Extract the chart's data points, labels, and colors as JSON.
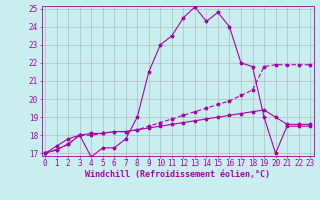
{
  "xlabel": "Windchill (Refroidissement éolien,°C)",
  "background_color": "#c8eef0",
  "grid_color": "#b0b0b0",
  "line_color": "#aa00aa",
  "xmin": 0,
  "xmax": 23,
  "ymin": 17,
  "ymax": 25,
  "yticks": [
    17,
    18,
    19,
    20,
    21,
    22,
    23,
    24,
    25
  ],
  "xticks": [
    0,
    1,
    2,
    3,
    4,
    5,
    6,
    7,
    8,
    9,
    10,
    11,
    12,
    13,
    14,
    15,
    16,
    17,
    18,
    19,
    20,
    21,
    22,
    23
  ],
  "line1_x": [
    0,
    1,
    2,
    3,
    4,
    5,
    6,
    7,
    8,
    9,
    10,
    11,
    12,
    13,
    14,
    15,
    16,
    17,
    18,
    19,
    20,
    21,
    22,
    23
  ],
  "line1_y": [
    17.0,
    17.4,
    17.8,
    18.0,
    16.8,
    17.3,
    17.3,
    17.8,
    19.0,
    21.5,
    23.0,
    23.5,
    24.5,
    25.1,
    24.3,
    24.8,
    24.0,
    22.0,
    21.8,
    19.0,
    17.0,
    18.5,
    18.5,
    18.5
  ],
  "line2_x": [
    0,
    1,
    2,
    3,
    4,
    5,
    6,
    7,
    8,
    9,
    10,
    11,
    12,
    13,
    14,
    15,
    16,
    17,
    18,
    19,
    20,
    21,
    22,
    23
  ],
  "line2_y": [
    17.0,
    17.2,
    17.5,
    18.0,
    18.0,
    18.1,
    18.2,
    18.2,
    18.3,
    18.5,
    18.7,
    18.9,
    19.1,
    19.3,
    19.5,
    19.7,
    19.9,
    20.2,
    20.5,
    21.8,
    21.9,
    21.9,
    21.9,
    21.9
  ],
  "line3_x": [
    0,
    1,
    2,
    3,
    4,
    5,
    6,
    7,
    8,
    9,
    10,
    11,
    12,
    13,
    14,
    15,
    16,
    17,
    18,
    19,
    20,
    21,
    22,
    23
  ],
  "line3_y": [
    17.0,
    17.2,
    17.5,
    18.0,
    18.1,
    18.1,
    18.2,
    18.2,
    18.3,
    18.4,
    18.5,
    18.6,
    18.7,
    18.8,
    18.9,
    19.0,
    19.1,
    19.2,
    19.3,
    19.4,
    19.0,
    18.6,
    18.6,
    18.6
  ],
  "tick_fontsize": 5.5,
  "xlabel_fontsize": 6.0
}
